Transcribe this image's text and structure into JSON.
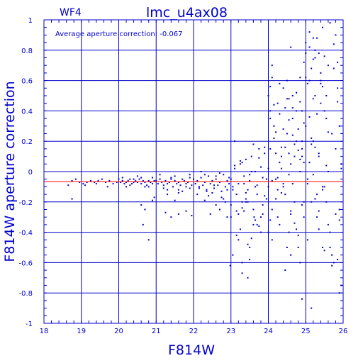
{
  "panel_label": "WF4",
  "title": "lmc_u4ax08",
  "annotation": "Average aperture correction: -0.067",
  "xlabel": "F814W",
  "ylabel": "F814W aperture correction",
  "colors": {
    "axes": "#0000cc",
    "points": "#0000cc",
    "reference_line": "#ff0000",
    "background": "#ffffff"
  },
  "chart_data": {
    "type": "scatter",
    "title": "lmc_u4ax08",
    "xlabel": "F814W",
    "ylabel": "F814W aperture correction",
    "xlim": [
      18,
      26
    ],
    "ylim": [
      -1,
      1
    ],
    "x_ticks": [
      18,
      19,
      20,
      21,
      22,
      23,
      24,
      25,
      26
    ],
    "y_ticks": [
      -1,
      -0.8,
      -0.6,
      -0.4,
      -0.2,
      0,
      0.2,
      0.4,
      0.6,
      0.8,
      1
    ],
    "x_tick_labels": [
      "18",
      "19",
      "20",
      "21",
      "22",
      "23",
      "24",
      "25",
      "26"
    ],
    "y_tick_labels": [
      "-1",
      "-0.8",
      "-0.6",
      "-0.4",
      "-0.2",
      "0",
      "0.2",
      "0.4",
      "0.6",
      "0.8",
      "1"
    ],
    "grid": true,
    "reference_line": {
      "y": -0.067
    },
    "series": [
      {
        "x": [
          18.65,
          18.75,
          18.85,
          18.95,
          19.05,
          19.15,
          19.25,
          19.35,
          19.45,
          19.55,
          19.65,
          19.75,
          19.85,
          19.95,
          18.75,
          19.1,
          19.4,
          19.7,
          20.0,
          20.05,
          20.1,
          20.15,
          20.2,
          20.25,
          20.3,
          20.35,
          20.4,
          20.45,
          20.5,
          20.55,
          20.6,
          20.65,
          20.7,
          20.75,
          20.8,
          20.85,
          20.9,
          20.95,
          20.1,
          20.3,
          20.5,
          20.7,
          20.9,
          20.2,
          20.4,
          20.6,
          20.8,
          20.6,
          20.7,
          20.65,
          20.8,
          20.9,
          20.95,
          21.0,
          21.05,
          21.1,
          21.15,
          21.2,
          21.25,
          21.3,
          21.35,
          21.4,
          21.45,
          21.5,
          21.55,
          21.6,
          21.65,
          21.7,
          21.75,
          21.8,
          21.85,
          21.9,
          21.95,
          21.1,
          21.3,
          21.5,
          21.7,
          21.9,
          21.2,
          21.4,
          21.6,
          21.8,
          21.3,
          21.6,
          21.9,
          21.25,
          21.4,
          21.6,
          21.8,
          21.95,
          21.5,
          22.0,
          22.05,
          22.1,
          22.15,
          22.2,
          22.25,
          22.3,
          22.35,
          22.4,
          22.45,
          22.5,
          22.55,
          22.6,
          22.65,
          22.7,
          22.75,
          22.8,
          22.85,
          22.9,
          22.95,
          22.1,
          22.3,
          22.5,
          22.7,
          22.9,
          22.2,
          22.4,
          22.6,
          22.8,
          22.15,
          22.35,
          22.55,
          22.75,
          22.95,
          22.45,
          22.7,
          22.9,
          22.6,
          22.85,
          22.3,
          23.0,
          23.05,
          23.1,
          23.15,
          23.2,
          23.25,
          23.3,
          23.35,
          23.4,
          23.45,
          23.5,
          23.55,
          23.6,
          23.65,
          23.7,
          23.75,
          23.8,
          23.85,
          23.9,
          23.95,
          23.0,
          23.1,
          23.2,
          23.3,
          23.4,
          23.5,
          23.6,
          23.7,
          23.8,
          23.9,
          23.05,
          23.15,
          23.25,
          23.35,
          23.45,
          23.55,
          23.65,
          23.75,
          23.85,
          23.95,
          23.0,
          23.2,
          23.4,
          23.6,
          23.8,
          23.1,
          23.3,
          23.5,
          23.7,
          23.9,
          23.05,
          23.25,
          23.45,
          23.65,
          23.85,
          23.15,
          23.35,
          23.55,
          23.75,
          22.98,
          23.3,
          23.45,
          23.3,
          23.62,
          23.5,
          23.4,
          24.0,
          24.05,
          24.1,
          24.15,
          24.2,
          24.25,
          24.3,
          24.35,
          24.4,
          24.45,
          24.5,
          24.55,
          24.6,
          24.65,
          24.7,
          24.75,
          24.8,
          24.85,
          24.9,
          24.95,
          24.0,
          24.1,
          24.2,
          24.3,
          24.4,
          24.5,
          24.6,
          24.7,
          24.8,
          24.9,
          24.05,
          24.15,
          24.25,
          24.35,
          24.45,
          24.55,
          24.65,
          24.75,
          24.85,
          24.95,
          24.0,
          24.2,
          24.4,
          24.6,
          24.8,
          24.1,
          24.3,
          24.5,
          24.7,
          24.9,
          24.05,
          24.25,
          24.45,
          24.65,
          24.85,
          24.15,
          24.35,
          24.55,
          24.75,
          24.95,
          24.0,
          24.3,
          24.6,
          24.9,
          24.2,
          24.5,
          24.8,
          24.1,
          24.4,
          24.7,
          24.05,
          24.35,
          24.65,
          24.95,
          24.25,
          24.55,
          24.85,
          24.1,
          24.05,
          24.85,
          24.75,
          24.55,
          24.65,
          24.45,
          24.9,
          25.0,
          25.05,
          25.1,
          25.15,
          25.2,
          25.25,
          25.3,
          25.35,
          25.4,
          25.45,
          25.5,
          25.55,
          25.6,
          25.65,
          25.7,
          25.75,
          25.8,
          25.85,
          25.9,
          25.95,
          25.0,
          25.1,
          25.2,
          25.3,
          25.4,
          25.5,
          25.6,
          25.7,
          25.8,
          25.9,
          25.05,
          25.15,
          25.25,
          25.35,
          25.45,
          25.55,
          25.65,
          25.75,
          25.85,
          25.95,
          25.0,
          25.2,
          25.4,
          25.6,
          25.8,
          25.1,
          25.3,
          25.5,
          25.7,
          25.9,
          25.05,
          25.25,
          25.45,
          25.65,
          25.85,
          25.15,
          25.35,
          25.55,
          25.75,
          25.95,
          24.6,
          24.75,
          24.9,
          24.95,
          25.0,
          25.15,
          25.2,
          25.25,
          25.3,
          25.45,
          25.55,
          25.35,
          25.15,
          25.5,
          25.85,
          25.1,
          25.2,
          25.45,
          25.6,
          25.9,
          25.05,
          25.25,
          25.4,
          25.1,
          25.35
        ],
        "y": [
          -0.09,
          -0.06,
          -0.05,
          -0.07,
          -0.08,
          -0.07,
          -0.06,
          -0.07,
          -0.06,
          -0.05,
          -0.07,
          -0.06,
          -0.08,
          -0.07,
          -0.18,
          -0.09,
          -0.08,
          -0.1,
          -0.05,
          -0.07,
          -0.06,
          -0.08,
          -0.07,
          -0.06,
          -0.05,
          -0.08,
          -0.07,
          -0.06,
          -0.07,
          -0.05,
          -0.08,
          -0.06,
          -0.07,
          -0.09,
          -0.06,
          -0.07,
          -0.08,
          -0.06,
          -0.04,
          -0.09,
          -0.03,
          -0.1,
          -0.04,
          -0.1,
          -0.05,
          -0.04,
          -0.1,
          -0.22,
          -0.25,
          -0.35,
          -0.45,
          -0.19,
          -0.17,
          -0.06,
          -0.08,
          -0.05,
          -0.07,
          -0.09,
          -0.06,
          -0.08,
          -0.07,
          -0.05,
          -0.1,
          -0.06,
          -0.08,
          -0.07,
          -0.09,
          -0.05,
          -0.06,
          -0.08,
          -0.07,
          -0.04,
          -0.09,
          -0.02,
          -0.12,
          -0.03,
          -0.13,
          -0.02,
          -0.11,
          -0.04,
          -0.14,
          -0.1,
          -0.15,
          -0.12,
          -0.11,
          -0.27,
          -0.3,
          -0.28,
          -0.26,
          -0.29,
          -0.19,
          -0.05,
          -0.08,
          -0.06,
          -0.1,
          -0.04,
          -0.09,
          -0.07,
          -0.12,
          -0.03,
          -0.08,
          -0.06,
          -0.11,
          -0.05,
          -0.09,
          -0.07,
          -0.13,
          -0.02,
          -0.1,
          -0.06,
          -0.08,
          -0.15,
          -0.02,
          -0.14,
          -0.01,
          -0.12,
          0.0,
          -0.16,
          -0.03,
          -0.18,
          -0.11,
          -0.13,
          -0.09,
          -0.17,
          -0.04,
          -0.28,
          -0.25,
          -0.3,
          -0.22,
          -0.2,
          -0.19,
          -0.05,
          -0.1,
          0.02,
          -0.15,
          -0.08,
          0.05,
          -0.2,
          -0.03,
          0.08,
          -0.12,
          -0.06,
          0.1,
          -0.25,
          0.0,
          -0.09,
          0.15,
          -0.3,
          -0.04,
          0.12,
          -0.18,
          -0.22,
          0.04,
          -0.28,
          0.06,
          -0.14,
          -0.02,
          0.18,
          -0.35,
          0.03,
          -0.16,
          -0.12,
          -0.26,
          0.07,
          -0.08,
          -0.2,
          0.0,
          -0.1,
          0.09,
          -0.22,
          -0.05,
          -0.3,
          -0.45,
          -0.18,
          -0.35,
          -0.4,
          0.2,
          -0.24,
          -0.5,
          -0.15,
          0.16,
          -0.55,
          -0.38,
          -0.48,
          -0.32,
          -0.28,
          -0.42,
          -0.26,
          -0.44,
          -0.36,
          -0.62,
          -0.6,
          -0.7,
          -0.67,
          -0.3,
          -0.58,
          -0.2,
          -0.1,
          0.15,
          -0.25,
          0.3,
          -0.05,
          0.45,
          -0.35,
          0.1,
          0.55,
          -0.15,
          0.25,
          -0.4,
          0.05,
          0.35,
          -0.2,
          0.2,
          -0.5,
          0.0,
          0.4,
          -0.3,
          0.5,
          -0.45,
          0.12,
          0.38,
          -0.08,
          0.6,
          -0.28,
          0.18,
          0.28,
          -0.22,
          -0.32,
          0.22,
          -0.12,
          0.02,
          0.42,
          -0.02,
          0.5,
          -0.38,
          0.08,
          0.32,
          0.02,
          -0.18,
          0.28,
          -0.55,
          0.14,
          -0.06,
          0.06,
          0.48,
          -0.34,
          0.2,
          0.35,
          -0.3,
          0.16,
          0.24,
          -0.6,
          0.44,
          -0.14,
          0.34,
          0.52,
          0.06,
          -0.4,
          0.58,
          -0.26,
          0.15,
          0.26,
          -0.5,
          -0.42,
          0.62,
          -0.1,
          0.1,
          0.4,
          0.16,
          -0.08,
          -0.2,
          -0.04,
          0.12,
          0.46,
          0.7,
          0.56,
          0.62,
          0.52,
          0.48,
          0.42,
          -0.65,
          -0.84,
          0.3,
          -0.05,
          0.6,
          -0.2,
          0.2,
          0.75,
          -0.3,
          0.1,
          0.45,
          -0.5,
          -0.1,
          0.35,
          0.0,
          -0.4,
          0.25,
          -0.6,
          0.15,
          0.55,
          -0.25,
          0.05,
          0.78,
          0.82,
          0.48,
          -0.15,
          0.65,
          0.4,
          -0.35,
          -0.55,
          0.9,
          -0.8,
          -0.45,
          0.22,
          0.5,
          0.12,
          0.95,
          -0.2,
          -0.5,
          0.68,
          0.72,
          0.02,
          0.85,
          0.88,
          0.6,
          0.7,
          -0.28,
          0.92,
          0.38,
          0.76,
          -0.62,
          0.3,
          0.58,
          0.16,
          -0.1,
          0.98,
          0.46,
          0.18,
          0.78,
          0.04,
          0.84,
          -0.75,
          0.82,
          0.4,
          0.1,
          0.72,
          0.62,
          0.68,
          0.74,
          0.8,
          0.88,
          0.56,
          0.5,
          -0.38,
          -0.9,
          -0.52,
          -0.58,
          0.06,
          -0.02,
          -0.12,
          0.26,
          -0.32,
          -0.08,
          -0.18,
          0.58,
          0.36,
          -0.26
        ]
      }
    ]
  }
}
